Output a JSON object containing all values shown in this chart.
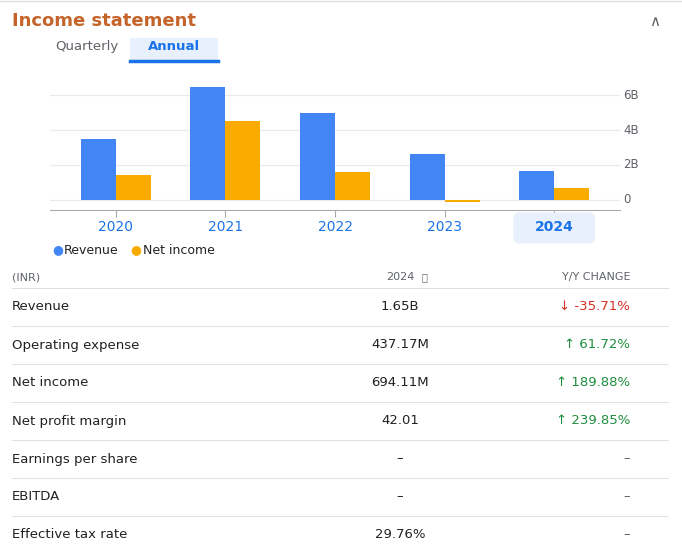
{
  "title": "Income statement",
  "tab_quarterly": "Quarterly",
  "tab_annual": "Annual",
  "years": [
    "2020",
    "2021",
    "2022",
    "2023",
    "2024"
  ],
  "revenue_B": [
    3.5,
    6.5,
    5.0,
    2.6,
    1.65
  ],
  "netincome_B": [
    1.4,
    4.5,
    1.6,
    -0.15,
    0.694
  ],
  "revenue_color": "#4285F4",
  "netincome_color": "#F9AB00",
  "yaxis_ticks": [
    0,
    2,
    4,
    6
  ],
  "yaxis_labels": [
    "0",
    "2B",
    "4B",
    "6B"
  ],
  "table_header_inr": "(INR)",
  "table_header_yoy": "Y/Y CHANGE",
  "table_rows": [
    {
      "label": "Revenue",
      "value": "1.65B",
      "change": "↓ -35.71%",
      "change_color": "#d93025"
    },
    {
      "label": "Operating expense",
      "value": "437.17M",
      "change": "↑ 61.72%",
      "change_color": "#1e8e3e"
    },
    {
      "label": "Net income",
      "value": "694.11M",
      "change": "↑ 189.88%",
      "change_color": "#1e8e3e"
    },
    {
      "label": "Net profit margin",
      "value": "42.01",
      "change": "↑ 239.85%",
      "change_color": "#1e8e3e"
    },
    {
      "label": "Earnings per share",
      "value": "–",
      "change": "–",
      "change_color": "#5f6368"
    },
    {
      "label": "EBITDA",
      "value": "–",
      "change": "–",
      "change_color": "#5f6368"
    },
    {
      "label": "Effective tax rate",
      "value": "29.76%",
      "change": "–",
      "change_color": "#5f6368"
    }
  ],
  "bg_color": "#ffffff",
  "border_color": "#dadce0",
  "text_dark": "#202124",
  "text_gray": "#5f6368",
  "text_blue": "#1a73e8",
  "highlight_bg": "#e8f0fe"
}
